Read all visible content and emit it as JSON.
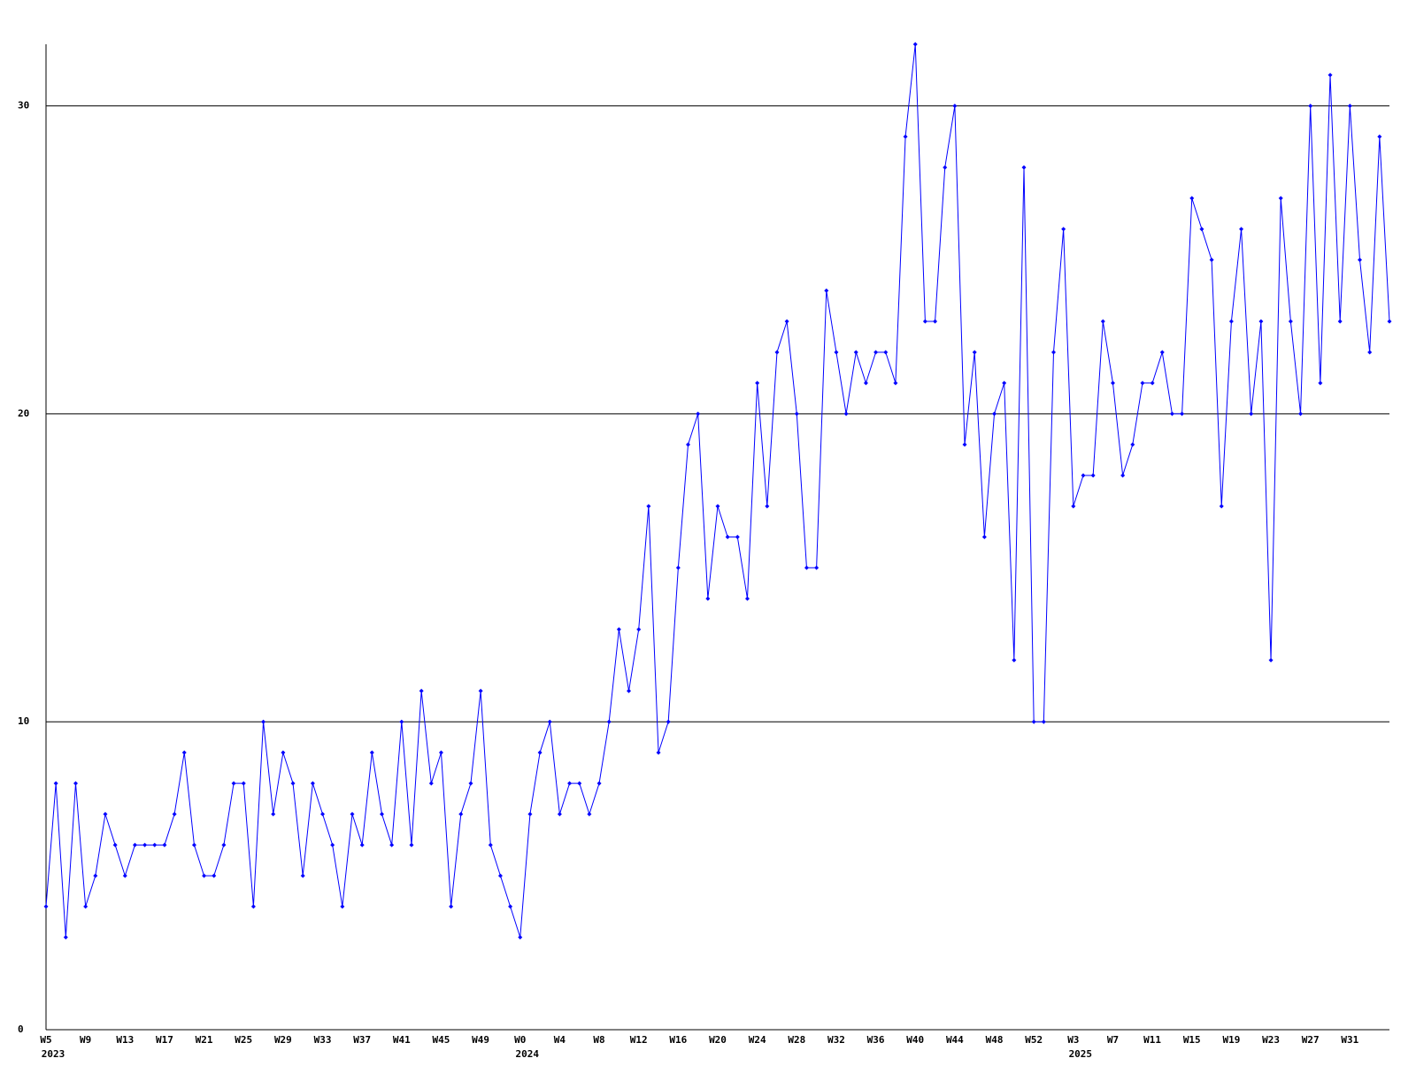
{
  "chart_data": {
    "type": "line",
    "categories": [
      "W5",
      null,
      null,
      null,
      "W9",
      null,
      null,
      null,
      "W13",
      null,
      null,
      null,
      "W17",
      null,
      null,
      null,
      "W21",
      null,
      null,
      null,
      "W25",
      null,
      null,
      null,
      "W29",
      null,
      null,
      null,
      "W33",
      null,
      null,
      null,
      "W37",
      null,
      null,
      null,
      "W41",
      null,
      null,
      null,
      "W45",
      null,
      null,
      null,
      "W49",
      null,
      null,
      null,
      "W0",
      null,
      null,
      null,
      "W4",
      null,
      null,
      null,
      "W8",
      null,
      null,
      null,
      "W12",
      null,
      null,
      null,
      "W16",
      null,
      null,
      null,
      "W20",
      null,
      null,
      null,
      "W24",
      null,
      null,
      null,
      "W28",
      null,
      null,
      null,
      "W32",
      null,
      null,
      null,
      "W36",
      null,
      null,
      null,
      "W40",
      null,
      null,
      null,
      "W44",
      null,
      null,
      null,
      "W48",
      null,
      null,
      null,
      "W52",
      null,
      null,
      null,
      "W3",
      null,
      null,
      null,
      "W7",
      null,
      null,
      null,
      "W11",
      null,
      null,
      null,
      "W15",
      null,
      null,
      null,
      "W19",
      null,
      null,
      null,
      "W23",
      null,
      null,
      null,
      "W27",
      null,
      null,
      null,
      "W31",
      null,
      null,
      null,
      null
    ],
    "years": [
      "2023",
      null,
      null,
      null,
      null,
      null,
      null,
      null,
      null,
      null,
      null,
      null,
      null,
      null,
      null,
      null,
      null,
      null,
      null,
      null,
      null,
      null,
      null,
      null,
      null,
      null,
      null,
      null,
      null,
      null,
      null,
      null,
      null,
      null,
      null,
      null,
      null,
      null,
      null,
      null,
      null,
      null,
      null,
      null,
      null,
      null,
      null,
      null,
      "2024",
      null,
      null,
      null,
      null,
      null,
      null,
      null,
      null,
      null,
      null,
      null,
      null,
      null,
      null,
      null,
      null,
      null,
      null,
      null,
      null,
      null,
      null,
      null,
      null,
      null,
      null,
      null,
      null,
      null,
      null,
      null,
      null,
      null,
      null,
      null,
      null,
      null,
      null,
      null,
      null,
      null,
      null,
      null,
      null,
      null,
      null,
      null,
      null,
      null,
      null,
      null,
      null,
      null,
      null,
      null,
      "2025",
      null,
      null,
      null,
      null,
      null,
      null,
      null,
      null,
      null,
      null,
      null,
      null,
      null,
      null,
      null,
      null,
      null,
      null,
      null,
      null,
      null,
      null,
      null,
      null,
      null,
      null,
      null,
      null,
      null,
      null,
      null
    ],
    "series": [
      {
        "color": "#0000ff",
        "values": [
          4,
          8,
          3,
          8,
          4,
          5,
          7,
          6,
          5,
          6,
          6,
          6,
          6,
          7,
          9,
          6,
          5,
          5,
          6,
          8,
          8,
          4,
          10,
          7,
          9,
          8,
          5,
          8,
          7,
          6,
          4,
          7,
          6,
          9,
          7,
          6,
          10,
          6,
          11,
          8,
          9,
          4,
          7,
          8,
          11,
          6,
          5,
          4,
          3,
          7,
          9,
          10,
          7,
          8,
          8,
          7,
          8,
          10,
          13,
          11,
          13,
          17,
          9,
          10,
          15,
          19,
          20,
          14,
          17,
          16,
          16,
          14,
          21,
          17,
          22,
          23,
          20,
          15,
          15,
          24,
          22,
          20,
          22,
          21,
          22,
          22,
          21,
          29,
          32,
          23,
          23,
          28,
          30,
          19,
          22,
          16,
          20,
          21,
          12,
          28,
          10,
          10,
          22,
          26,
          17,
          18,
          18,
          23,
          21,
          18,
          19,
          21,
          21,
          22,
          20,
          20,
          27,
          26,
          25,
          17,
          23,
          26,
          20,
          23,
          12,
          27,
          23,
          20,
          30,
          21,
          31,
          23,
          30,
          25,
          22,
          29,
          23
        ]
      }
    ],
    "ylim": [
      0,
      32
    ],
    "yticks": [
      0,
      10,
      20,
      30
    ],
    "grid": true
  }
}
